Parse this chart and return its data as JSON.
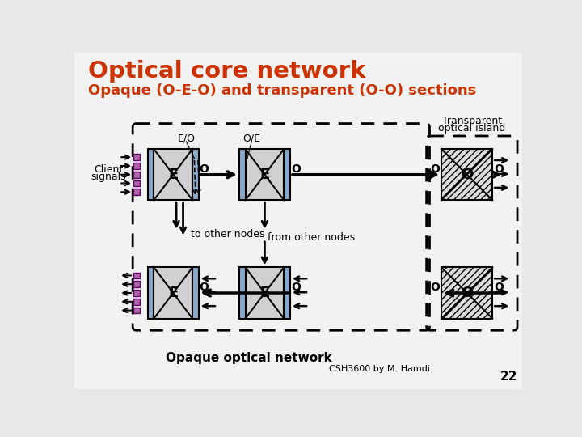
{
  "title1": "Optical core network",
  "title2": "Opaque (O-E-O) and transparent (O-O) sections",
  "title_color": "#CC3300",
  "transparent_island_label": [
    "Transparent",
    "optical island"
  ],
  "client_signals_label": [
    "Client",
    "signals"
  ],
  "eo_label": "E/O",
  "oe_label": "O/E",
  "to_other_nodes": "to other nodes",
  "from_other_nodes": "from other nodes",
  "opaque_label": "Opaque optical network",
  "footer": "CSH3600 by M. Hamdi",
  "page_num": "22",
  "gray_fill": "#D0D0D0",
  "blue_fill": "#88AACC",
  "hatch_fill": "#DCDCDC",
  "purple_fill": "#AA66AA",
  "bg_color": "#E8E8E8"
}
